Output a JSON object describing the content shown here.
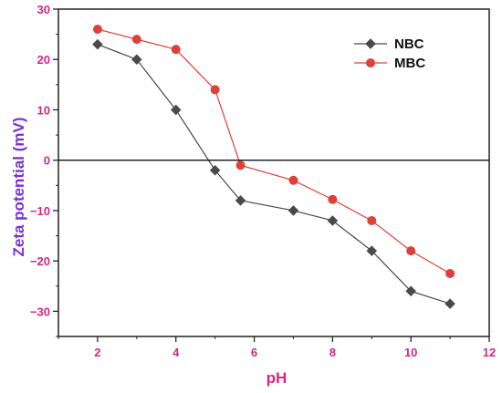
{
  "chart_data": {
    "type": "line",
    "title": "",
    "xlabel": "pH",
    "ylabel": "Zeta potential (mV)",
    "xlim": [
      1,
      12
    ],
    "ylim": [
      -35,
      30
    ],
    "xticks": [
      2,
      4,
      6,
      8,
      10,
      12
    ],
    "yticks": [
      30,
      20,
      10,
      0,
      -10,
      -20,
      -30
    ],
    "ytick_labels": [
      "30",
      "20",
      "10",
      "0",
      "−10",
      "−20",
      "−30"
    ],
    "grid": false,
    "zero_line": true,
    "legend_position": "top-right",
    "series": [
      {
        "name": "NBC",
        "color": "#4a4a4a",
        "marker": "diamond",
        "x": [
          2,
          3,
          4,
          5,
          5.65,
          7,
          8,
          9,
          10,
          11
        ],
        "y": [
          23,
          20,
          10,
          -2,
          -8,
          -10,
          -12,
          -18,
          -26,
          -28.5
        ]
      },
      {
        "name": "MBC",
        "color": "#e0403a",
        "marker": "circle",
        "x": [
          2,
          3,
          4,
          5,
          5.65,
          7,
          8,
          9,
          10,
          11
        ],
        "y": [
          26,
          24,
          22,
          14,
          -1,
          -4,
          -7.8,
          -12,
          -18,
          -22.5
        ]
      }
    ],
    "colors": {
      "tick_label": "#d6287e",
      "xlabel": "#d6287e",
      "ylabel": "#7b2fd6",
      "axis": "#222222"
    }
  }
}
